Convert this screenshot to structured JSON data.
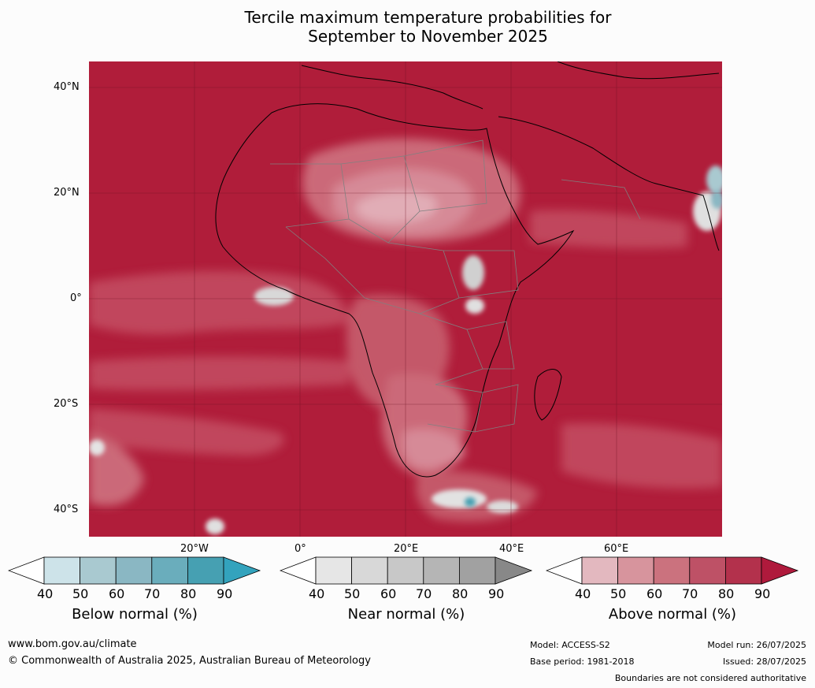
{
  "title": {
    "line1": "Tercile maximum temperature probabilities for",
    "line2": "September to November 2025"
  },
  "map": {
    "region": "Africa",
    "lat_labels": [
      "40°N",
      "20°N",
      "0°",
      "20°S",
      "40°S"
    ],
    "lon_labels": [
      "20°W",
      "0°",
      "20°E",
      "40°E",
      "60°E"
    ],
    "colors": {
      "above_dominant": "#b01d3a",
      "above_light": "#d9909c",
      "near": "#d0d0d0",
      "below": "#4a9eb0",
      "coast": "#000000",
      "borders": "#808080"
    }
  },
  "legends": [
    {
      "name": "Below normal (%)",
      "ticks": [
        "40",
        "50",
        "60",
        "70",
        "80",
        "90"
      ],
      "colors": [
        "#ffffff",
        "#cde3e9",
        "#a9c9d0",
        "#8ab7c3",
        "#6aadbc",
        "#46a0b2",
        "#33a3bd"
      ]
    },
    {
      "name": "Near normal (%)",
      "ticks": [
        "40",
        "50",
        "60",
        "70",
        "80",
        "90"
      ],
      "colors": [
        "#ffffff",
        "#e6e6e6",
        "#d8d8d8",
        "#c8c8c8",
        "#b5b5b5",
        "#a1a1a1",
        "#888888"
      ]
    },
    {
      "name": "Above normal (%)",
      "ticks": [
        "40",
        "50",
        "60",
        "70",
        "80",
        "90"
      ],
      "colors": [
        "#ffffff",
        "#e3b8bf",
        "#d7949d",
        "#cb727e",
        "#be5166",
        "#b3314c",
        "#af1a3c"
      ]
    }
  ],
  "footer": {
    "website": "www.bom.gov.au/climate",
    "copyright": "© Commonwealth of Australia 2025, Australian Bureau of Meteorology",
    "model": "Model: ACCESS-S2",
    "base_period": "Base period: 1981-2018",
    "model_run": "Model run: 26/07/2025",
    "issued": "Issued: 28/07/2025",
    "disclaimer": "Boundaries are not considered authoritative"
  }
}
